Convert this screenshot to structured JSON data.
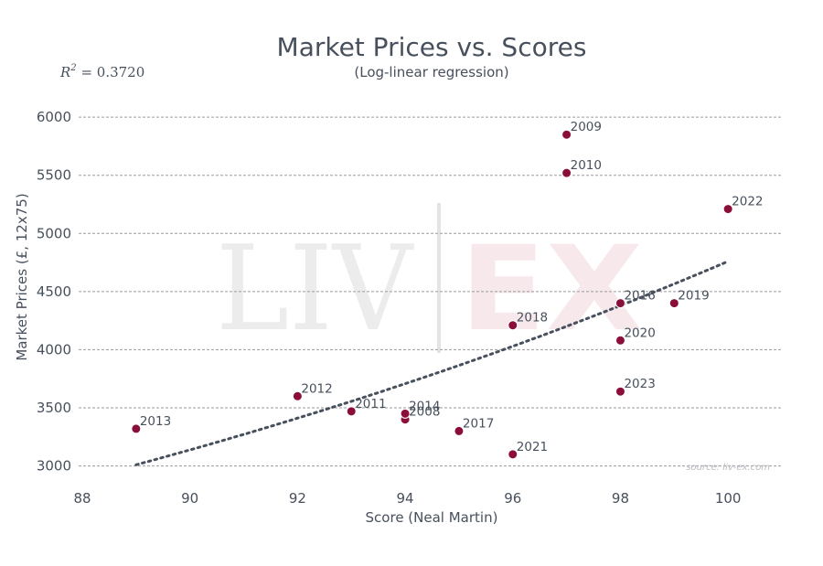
{
  "chart_data": {
    "type": "scatter",
    "title": "Market Prices vs. Scores",
    "subtitle": "(Log-linear regression)",
    "r_squared_label": "R",
    "r_squared_sup": "2",
    "r_squared_value": " = 0.3720",
    "xlabel": "Score (Neal Martin)",
    "ylabel": "Market Prices (£, 12x75)",
    "xlim": [
      88,
      101
    ],
    "ylim": [
      2800,
      6300
    ],
    "xticks": [
      88,
      90,
      92,
      94,
      96,
      98,
      100
    ],
    "yticks": [
      3000,
      3500,
      4000,
      4500,
      5000,
      5500,
      6000
    ],
    "grid": "horizontal dashed",
    "points": [
      {
        "label": "2013",
        "x": 89,
        "y": 3320
      },
      {
        "label": "2012",
        "x": 92,
        "y": 3600
      },
      {
        "label": "2011",
        "x": 93,
        "y": 3470
      },
      {
        "label": "2008",
        "x": 94,
        "y": 3400
      },
      {
        "label": "2014",
        "x": 94,
        "y": 3450
      },
      {
        "label": "2017",
        "x": 95,
        "y": 3300
      },
      {
        "label": "2018",
        "x": 96,
        "y": 4210
      },
      {
        "label": "2021",
        "x": 96,
        "y": 3100
      },
      {
        "label": "2009",
        "x": 97,
        "y": 5850
      },
      {
        "label": "2010",
        "x": 97,
        "y": 5520
      },
      {
        "label": "2016",
        "x": 98,
        "y": 4400
      },
      {
        "label": "2020",
        "x": 98,
        "y": 4080
      },
      {
        "label": "2023",
        "x": 98,
        "y": 3640
      },
      {
        "label": "2019",
        "x": 99,
        "y": 4400
      },
      {
        "label": "2022",
        "x": 100,
        "y": 5210
      }
    ],
    "regression": {
      "type": "log-linear",
      "x_start": 89,
      "y_start": 3010,
      "x_end": 100,
      "y_end": 4760
    },
    "point_color": "#8b0e3a",
    "trend_color": "#47505c",
    "grid_color": "#9a9a9a",
    "text_color": "#47505c",
    "watermark_left": "LIV",
    "watermark_right": "EX",
    "source": "source: liv-ex.com"
  }
}
